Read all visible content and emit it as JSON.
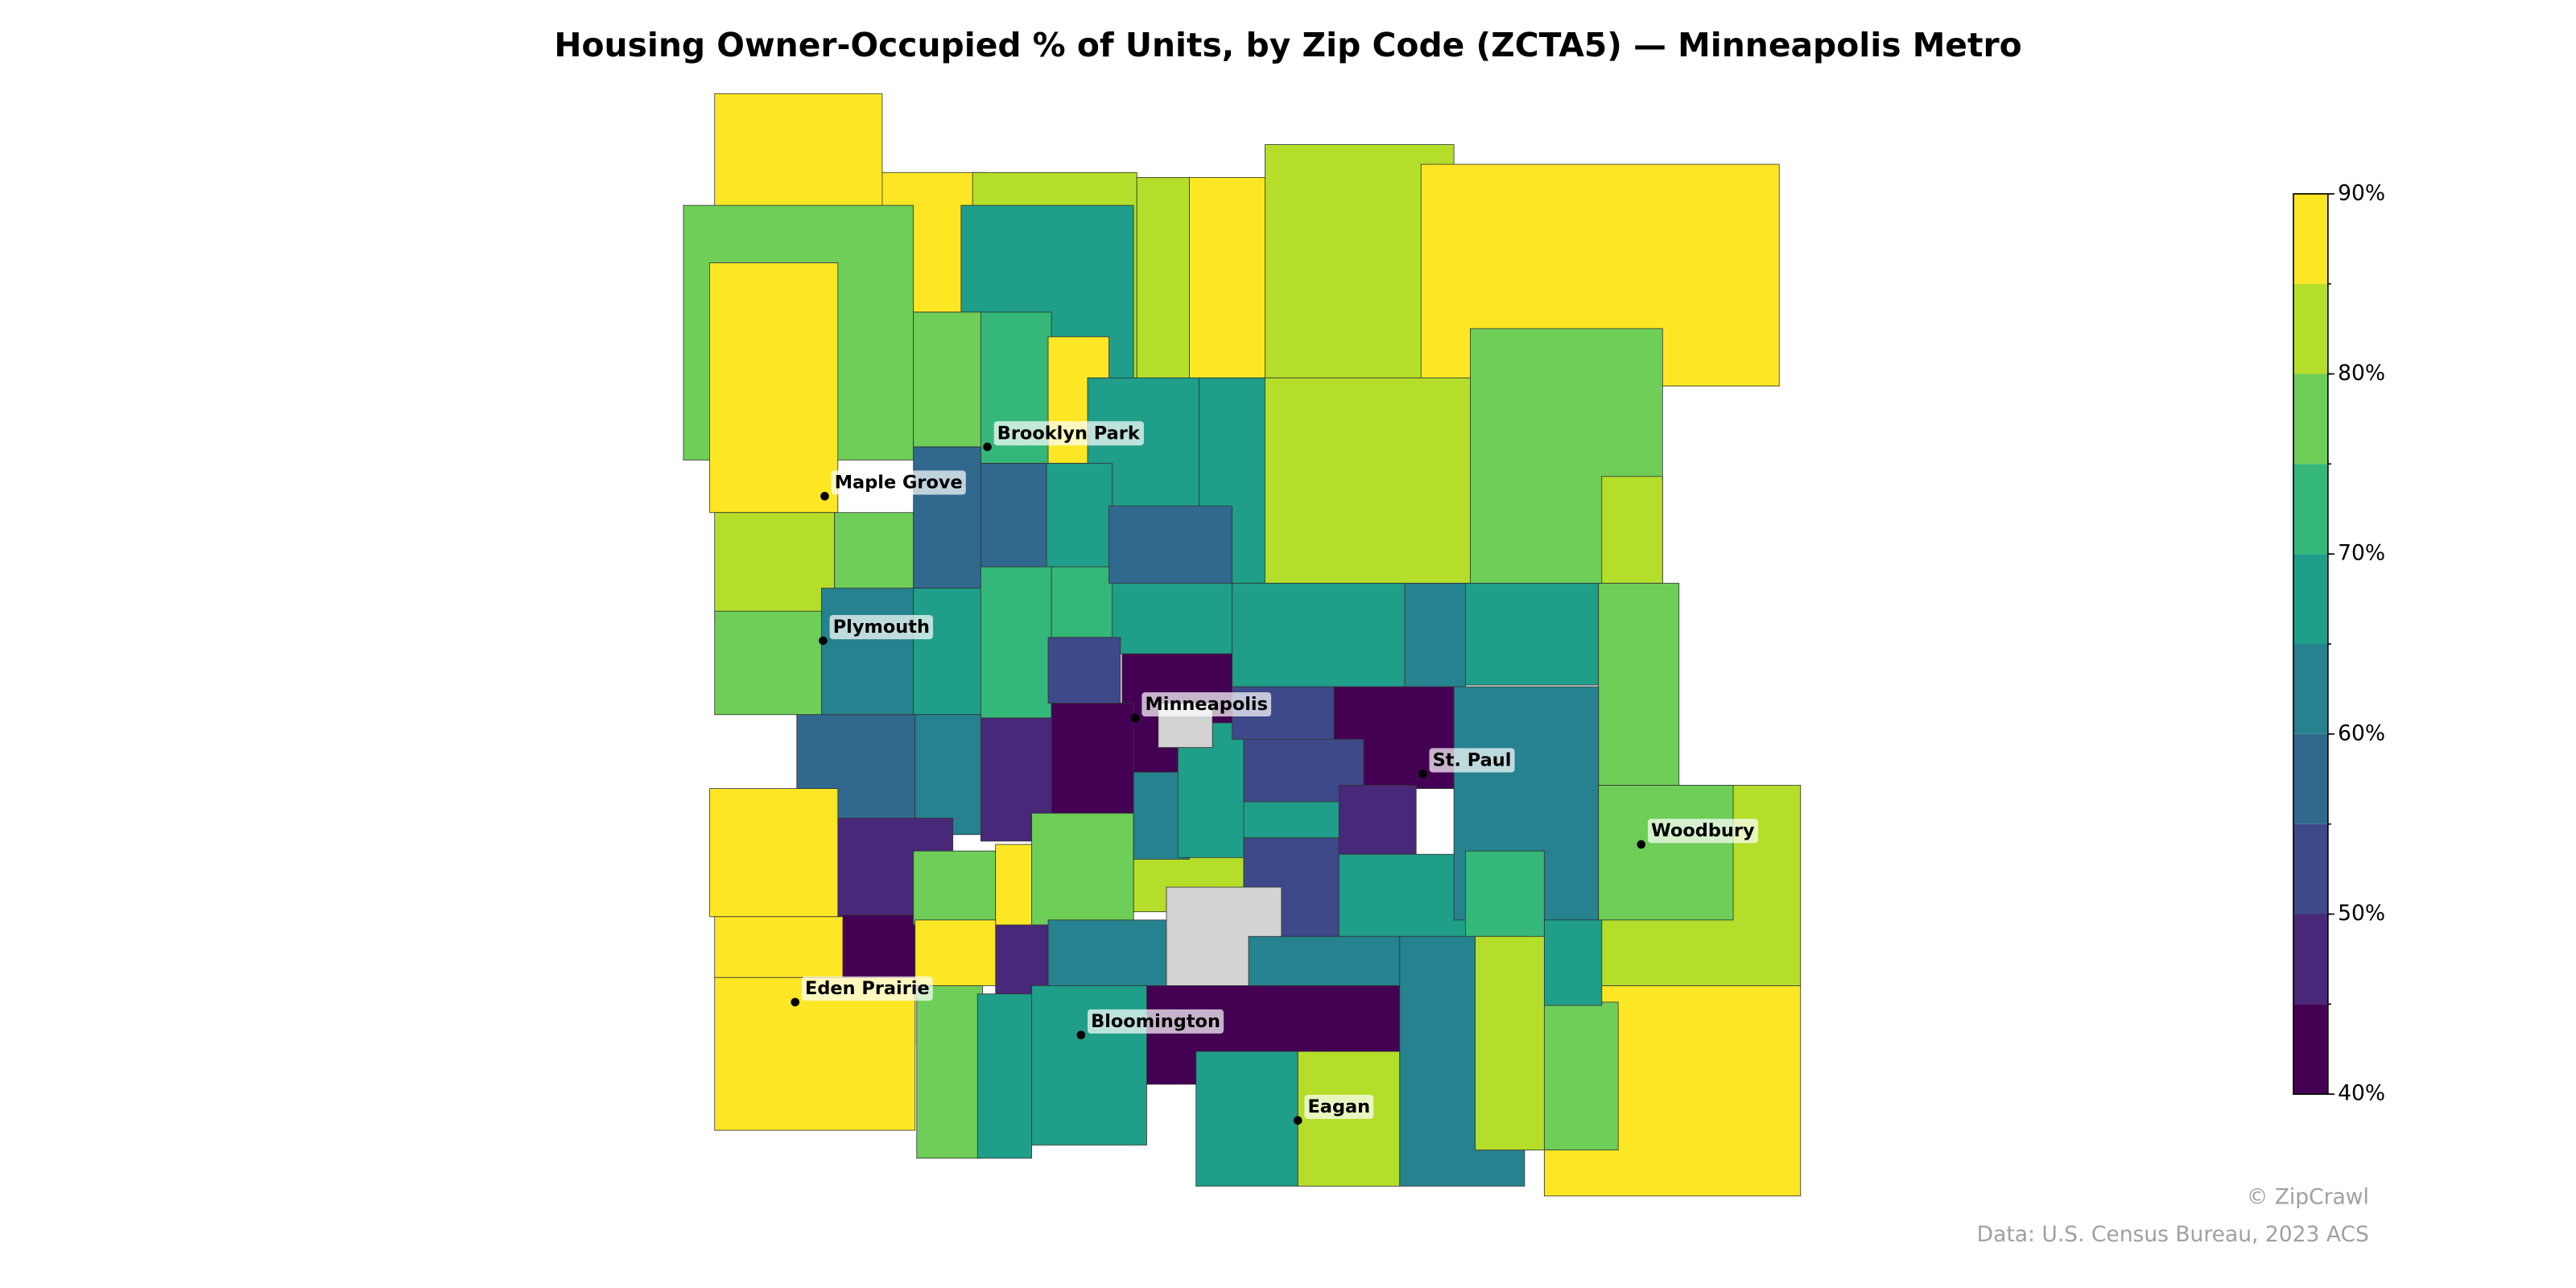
{
  "chart_data": {
    "type": "choropleth",
    "title": "Housing Owner-Occupied % of Units, by Zip Code (ZCTA5) — Minneapolis Metro",
    "regions": {
      "values": [
        88,
        88,
        77,
        88,
        82,
        82,
        88,
        82,
        88,
        67,
        77,
        72,
        88,
        67,
        67,
        82,
        77,
        82,
        82,
        77,
        57,
        57,
        68,
        77,
        62,
        67,
        72,
        72,
        67,
        58,
        67,
        62,
        67,
        77,
        52,
        42,
        42,
        57,
        62,
        47,
        47,
        42,
        42,
        88,
        88,
        88,
        77,
        88,
        77,
        82,
        62,
        67,
        53,
        42,
        52,
        67,
        52,
        47,
        67,
        62,
        72,
        82,
        77,
        88,
        47,
        62,
        null,
        null,
        62,
        42,
        77,
        67,
        67,
        67,
        82,
        62,
        82,
        77,
        67,
        88
      ]
    },
    "cities": [
      "Brooklyn Park",
      "Maple Grove",
      "Plymouth",
      "Minneapolis",
      "St. Paul",
      "Woodbury",
      "Eden Prairie",
      "Bloomington",
      "Eagan"
    ],
    "legend": {
      "bounds": [
        40,
        45,
        50,
        55,
        60,
        65,
        70,
        75,
        80,
        85,
        90
      ],
      "colors": [
        "#440154",
        "#482878",
        "#3e4989",
        "#31688e",
        "#26828e",
        "#1f9e89",
        "#35b779",
        "#6ece58",
        "#b5de2b",
        "#fde725"
      ],
      "missing_color": "#d3d3d3",
      "ticks": [
        {
          "value": 40,
          "label": "40%"
        },
        {
          "value": 50,
          "label": "50%"
        },
        {
          "value": 60,
          "label": "60%"
        },
        {
          "value": 70,
          "label": "70%"
        },
        {
          "value": 80,
          "label": "80%"
        },
        {
          "value": 90,
          "label": "90%"
        }
      ]
    },
    "credit": "© ZipCrawl",
    "source": "Data: U.S. Census Bureau, 2023 ACS"
  }
}
